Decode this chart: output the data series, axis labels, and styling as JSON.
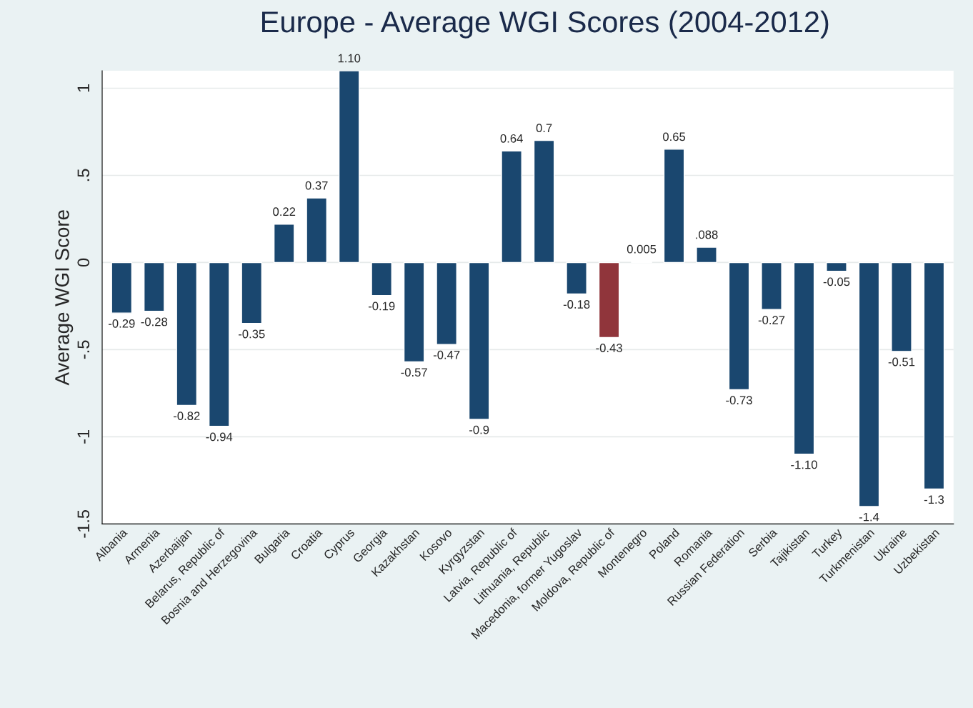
{
  "chart_data": {
    "type": "bar",
    "title": "Europe - Average WGI Scores (2004-2012)",
    "ylabel": "Average WGI Score",
    "categories": [
      "Albania",
      "Armenia",
      "Azerbaijan",
      "Belarus, Republic of",
      "Bosnia and Herzegovina",
      "Bulgaria",
      "Croatia",
      "Cyprus",
      "Georgia",
      "Kazakhstan",
      "Kosovo",
      "Kyrgyzstan",
      "Latvia, Republic of",
      "Lithuania, Republic",
      "Macedonia, former Yugoslav",
      "Moldova, Republic of",
      "Montenegro",
      "Poland",
      "Romania",
      "Russian Federation",
      "Serbia",
      "Tajikistan",
      "Turkey",
      "Turkmenistan",
      "Ukraine",
      "Uzbekistan"
    ],
    "values": [
      -0.29,
      -0.28,
      -0.82,
      -0.94,
      -0.35,
      0.22,
      0.37,
      1.1,
      -0.19,
      -0.57,
      -0.47,
      -0.9,
      0.64,
      0.7,
      -0.18,
      -0.43,
      0.005,
      0.65,
      0.088,
      -0.73,
      -0.27,
      -1.1,
      -0.05,
      -1.4,
      -0.51,
      -1.3
    ],
    "value_labels": [
      "-0.29",
      "-0.28",
      "-0.82",
      "-0.94",
      "-0.35",
      "0.22",
      "0.37",
      "1.10",
      "-0.19",
      "-0.57",
      "-0.47",
      "-0.9",
      "0.64",
      "0.7",
      "-0.18",
      "-0.43",
      "0.005",
      "0.65",
      ".088",
      "-0.73",
      "-0.27",
      "-1.10",
      "-0.05",
      "-1.4",
      "-0.51",
      "-1.3"
    ],
    "colors": [
      "#1a476f",
      "#1a476f",
      "#1a476f",
      "#1a476f",
      "#1a476f",
      "#1a476f",
      "#1a476f",
      "#1a476f",
      "#1a476f",
      "#1a476f",
      "#1a476f",
      "#1a476f",
      "#1a476f",
      "#1a476f",
      "#1a476f",
      "#90353b",
      "#1a476f",
      "#1a476f",
      "#1a476f",
      "#1a476f",
      "#1a476f",
      "#1a476f",
      "#1a476f",
      "#1a476f",
      "#1a476f",
      "#1a476f"
    ],
    "ylim": [
      -1.5,
      1.1
    ],
    "yticks": [
      {
        "value": -1.5,
        "label": "-1.5"
      },
      {
        "value": -1,
        "label": "-1"
      },
      {
        "value": -0.5,
        "label": "-.5"
      },
      {
        "value": 0,
        "label": "0"
      },
      {
        "value": 0.5,
        "label": ".5"
      },
      {
        "value": 1,
        "label": "1"
      }
    ],
    "grid": "y"
  }
}
